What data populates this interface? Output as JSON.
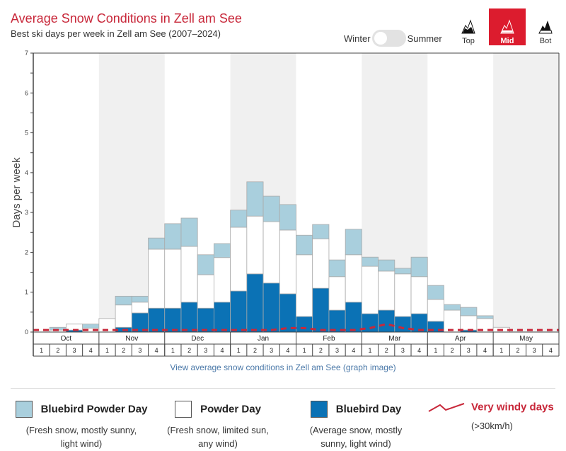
{
  "header": {
    "title": "Average Snow Conditions in Zell am See",
    "subtitle": "Best ski days per week in Zell am See (2007–2024)",
    "season_toggle": {
      "left_label": "Winter",
      "right_label": "Summer",
      "selected": "Winter"
    },
    "elevation_buttons": [
      {
        "label": "Top",
        "active": false
      },
      {
        "label": "Mid",
        "active": true
      },
      {
        "label": "Bot",
        "active": false
      }
    ]
  },
  "colors": {
    "bluebird_powder": "#a9cfdd",
    "powder": "#ffffff",
    "bluebird": "#0b72b5",
    "windy": "#c8283a",
    "shade": "#f0f0f0",
    "accent": "#dc1c2e"
  },
  "chart_data": {
    "type": "bar",
    "stacked": true,
    "title": "Average Snow Conditions in Zell am See",
    "subtitle": "Best ski days per week in Zell am See (2007–2024)",
    "xlabel": "",
    "ylabel": "Days per week",
    "ylim": [
      0,
      7
    ],
    "yticks": [
      0,
      1,
      2,
      3,
      4,
      5,
      6,
      7
    ],
    "months": [
      "Oct",
      "Nov",
      "Dec",
      "Jan",
      "Feb",
      "Mar",
      "Apr",
      "May"
    ],
    "weeks": [
      "1",
      "2",
      "3",
      "4"
    ],
    "series": [
      {
        "name": "Bluebird Day",
        "values": [
          0,
          0,
          0.05,
          0,
          0,
          0.12,
          0.48,
          0.6,
          0.6,
          0.75,
          0.6,
          0.75,
          1.03,
          1.46,
          1.23,
          0.96,
          0.39,
          1.1,
          0.55,
          0.75,
          0.46,
          0.55,
          0.39,
          0.46,
          0.27,
          0,
          0.05,
          0,
          0,
          0,
          0,
          0
        ]
      },
      {
        "name": "Powder Day",
        "values": [
          0,
          0.05,
          0.15,
          0.1,
          0.34,
          0.56,
          0.27,
          1.48,
          1.48,
          1.4,
          0.84,
          1.12,
          1.6,
          1.45,
          1.54,
          1.6,
          1.55,
          1.24,
          0.84,
          1.19,
          1.19,
          0.98,
          1.07,
          0.93,
          0.55,
          0.55,
          0.36,
          0.34,
          0.12,
          0,
          0,
          0
        ]
      },
      {
        "name": "Bluebird Powder Day",
        "values": [
          0,
          0.07,
          0,
          0.1,
          0,
          0.22,
          0.15,
          0.28,
          0.64,
          0.71,
          0.5,
          0.35,
          0.43,
          0.86,
          0.64,
          0.64,
          0.49,
          0.36,
          0.42,
          0.64,
          0.23,
          0.28,
          0.14,
          0.49,
          0.35,
          0.14,
          0.21,
          0.07,
          0,
          0,
          0,
          0
        ]
      }
    ],
    "windy_line": {
      "name": "Very windy days",
      "values": [
        0.05,
        0.05,
        0.05,
        0.05,
        0.05,
        0.05,
        0.05,
        0.05,
        0.05,
        0.05,
        0.05,
        0.05,
        0.05,
        0.05,
        0.05,
        0.1,
        0.1,
        0.05,
        0.05,
        0.05,
        0.1,
        0.2,
        0.1,
        0.05,
        0.05,
        0.05,
        0.05,
        0.05,
        0.05,
        0.05,
        0.05,
        0.05
      ]
    },
    "shaded_months": [
      "Nov",
      "Jan",
      "Mar",
      "May"
    ],
    "grid": false,
    "legend": "bottom"
  },
  "link_text": "View average snow conditions in Zell am See (graph image)",
  "legend": [
    {
      "label": "Bluebird Powder Day",
      "desc1": "(Fresh snow, mostly sunny,",
      "desc2": "light wind)"
    },
    {
      "label": "Powder Day",
      "desc1": "(Fresh snow, limited sun,",
      "desc2": "any wind)"
    },
    {
      "label": "Bluebird Day",
      "desc1": "(Average snow, mostly",
      "desc2": "sunny, light wind)"
    },
    {
      "label": "Very windy days",
      "desc1": "(>30km/h)",
      "desc2": ""
    }
  ]
}
